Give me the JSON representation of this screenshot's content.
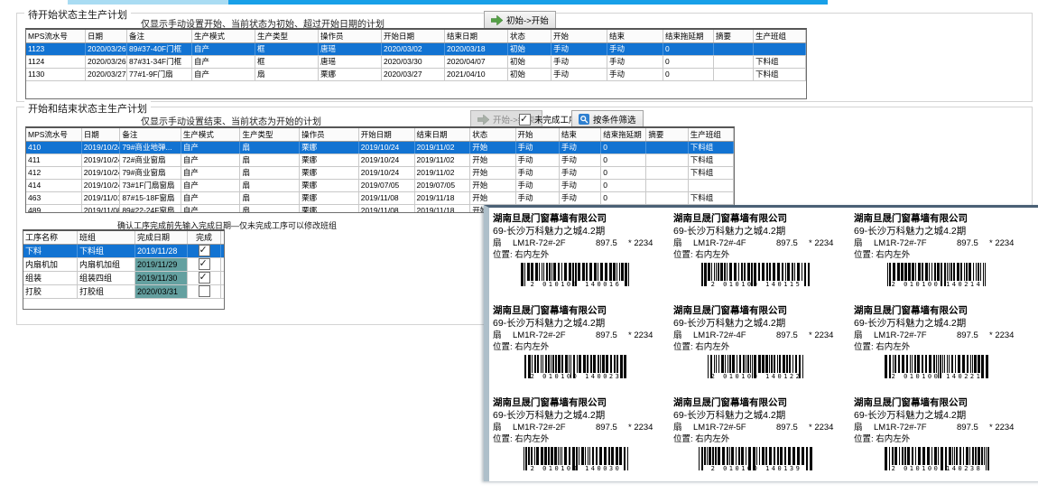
{
  "top_bar": {
    "color_light": "#a9dcf3",
    "color_main": "#18a0e8"
  },
  "section1": {
    "title": "待开始状态主生产计划",
    "subtitle": "仅显示手动设置开始、当前状态为初始、超过开始日期的计划",
    "start_button": "初始->开始",
    "columns": [
      "MPS流水号",
      "日期",
      "备注",
      "生产模式",
      "生产类型",
      "操作员",
      "开始日期",
      "结束日期",
      "状态",
      "开始",
      "结束",
      "结束拖延期",
      "摘要",
      "生产班组"
    ],
    "rows": [
      {
        "id": "1123",
        "date": "2020/03/26",
        "note": "89#37-40F门框",
        "mode": "自产",
        "ptype": "框",
        "operator": "唐瑶",
        "start_date": "2020/03/02",
        "end_date": "2020/03/18",
        "status": "初始",
        "start_mode": "手动",
        "end_mode": "手动",
        "delay": "0",
        "summary": "",
        "team": "",
        "selected": true
      },
      {
        "id": "1124",
        "date": "2020/03/26",
        "note": "87#31-34F门框",
        "mode": "自产",
        "ptype": "框",
        "operator": "唐瑶",
        "start_date": "2020/03/30",
        "end_date": "2020/04/07",
        "status": "初始",
        "start_mode": "手动",
        "end_mode": "手动",
        "delay": "0",
        "summary": "",
        "team": "下料组"
      },
      {
        "id": "1130",
        "date": "2020/03/27",
        "note": "77#1-9F门扇",
        "mode": "自产",
        "ptype": "扇",
        "operator": "栗娜",
        "start_date": "2020/03/27",
        "end_date": "2021/04/10",
        "status": "初始",
        "start_mode": "手动",
        "end_mode": "手动",
        "delay": "0",
        "summary": "",
        "team": "下料组"
      }
    ]
  },
  "section2": {
    "title": "开始和结束状态主生产计划",
    "subtitle": "仅显示手动设置结束、当前状态为开始的计划",
    "end_button": "开始->结束",
    "unfinished_checkbox": {
      "label": "未完成工序",
      "checked": true
    },
    "filter_button": "按条件筛选",
    "columns": [
      "MPS流水号",
      "日期",
      "备注",
      "生产模式",
      "生产类型",
      "操作员",
      "开始日期",
      "结束日期",
      "状态",
      "开始",
      "结束",
      "结束拖延期",
      "摘要",
      "生产班组"
    ],
    "rows": [
      {
        "id": "410",
        "date": "2019/10/24",
        "note": "79#商业地弹...",
        "mode": "自产",
        "ptype": "扇",
        "operator": "栗娜",
        "start_date": "2019/10/24",
        "end_date": "2019/11/02",
        "status": "开始",
        "start_mode": "手动",
        "end_mode": "手动",
        "delay": "0",
        "summary": "",
        "team": "下料组",
        "selected": true
      },
      {
        "id": "411",
        "date": "2019/10/24",
        "note": "72#商业窗扇",
        "mode": "自产",
        "ptype": "扇",
        "operator": "栗娜",
        "start_date": "2019/10/24",
        "end_date": "2019/11/02",
        "status": "开始",
        "start_mode": "手动",
        "end_mode": "手动",
        "delay": "0",
        "summary": "",
        "team": "下料组"
      },
      {
        "id": "412",
        "date": "2019/10/24",
        "note": "79#商业窗扇",
        "mode": "自产",
        "ptype": "扇",
        "operator": "栗娜",
        "start_date": "2019/10/24",
        "end_date": "2019/11/02",
        "status": "开始",
        "start_mode": "手动",
        "end_mode": "手动",
        "delay": "0",
        "summary": "",
        "team": "下料组"
      },
      {
        "id": "414",
        "date": "2019/10/24",
        "note": "73#1F门扇窗扇",
        "mode": "自产",
        "ptype": "扇",
        "operator": "栗娜",
        "start_date": "2019/07/05",
        "end_date": "2019/07/05",
        "status": "开始",
        "start_mode": "手动",
        "end_mode": "手动",
        "delay": "0",
        "summary": "",
        "team": ""
      },
      {
        "id": "463",
        "date": "2019/11/01",
        "note": "87#15-18F窗扇",
        "mode": "自产",
        "ptype": "扇",
        "operator": "栗娜",
        "start_date": "2019/11/08",
        "end_date": "2019/11/18",
        "status": "开始",
        "start_mode": "手动",
        "end_mode": "手动",
        "delay": "0",
        "summary": "",
        "team": "下料组"
      },
      {
        "id": "489",
        "date": "2019/11/08",
        "note": "89#22-24F窗扇",
        "mode": "自产",
        "ptype": "扇",
        "operator": "栗娜",
        "start_date": "2019/11/08",
        "end_date": "2019/11/18",
        "status": "开始",
        "start_mode": "手动",
        "end_mode": "手动",
        "delay": "0",
        "summary": "",
        "team": ""
      }
    ]
  },
  "process": {
    "hint": "确认工序完成前先输入完成日期—仅未完成工序可以修改班组",
    "columns": [
      "工序名称",
      "班组",
      "完成日期",
      "完成"
    ],
    "rows": [
      {
        "name": "下料",
        "team": "下料组",
        "date": "2019/11/28",
        "done": true,
        "selected": true
      },
      {
        "name": "内扇机加",
        "team": "内扇机加组",
        "date": "2019/11/29",
        "done": true
      },
      {
        "name": "组装",
        "team": "组装四组",
        "date": "2019/11/30",
        "done": true
      },
      {
        "name": "打胶",
        "team": "打胶组",
        "date": "2020/03/31",
        "done": false
      }
    ]
  },
  "labels": {
    "company": "湖南旦晟门窗幕墙有限公司",
    "project": "69-长沙万科魅力之城4.2期",
    "type": "扇",
    "width": "897.5",
    "height": "* 2234",
    "position_label": "位置:",
    "position": "右内左外",
    "items": [
      {
        "model": "LM1R-72#-2F",
        "code": "2 010100 140016"
      },
      {
        "model": "LM1R-72#-4F",
        "code": "2 010100 140115"
      },
      {
        "model": "LM1R-72#-7F",
        "code": "2 010100 140214"
      },
      {
        "model": "LM1R-72#-2F",
        "code": "2 010100 140023"
      },
      {
        "model": "LM1R-72#-4F",
        "code": "2 010100 140122"
      },
      {
        "model": "LM1R-72#-7F",
        "code": "2 010100 140221"
      },
      {
        "model": "LM1R-72#-2F",
        "code": "2 010100 140030"
      },
      {
        "model": "LM1R-72#-5F",
        "code": "2 010100 140139"
      },
      {
        "model": "LM1R-72#-7F",
        "code": "2 010100 140238"
      }
    ]
  },
  "icons": {
    "start_arrow": "green-arrow-right",
    "end_arrow": "gray-arrow-right",
    "filter": "magnifier-on-blue-square"
  },
  "colors": {
    "selection": "#1273d2",
    "date_cell": "#64a0a0",
    "top_bar": "#18a0e8",
    "start_arrow_green": "#55a046"
  }
}
